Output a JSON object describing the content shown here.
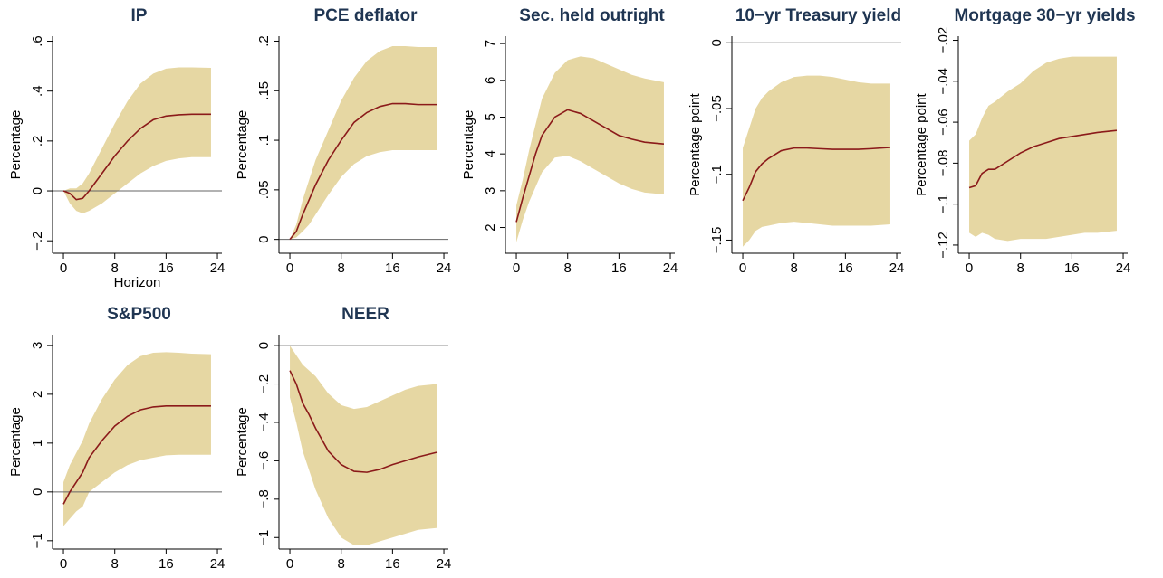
{
  "chart_data": [
    {
      "type": "line",
      "title": "IP",
      "y_label": "Percentage",
      "x_label": "Horizon",
      "color": "#8b1a1a",
      "band_color": "#e6d7a3",
      "x": [
        0,
        1,
        2,
        3,
        4,
        6,
        8,
        10,
        12,
        14,
        16,
        18,
        20,
        23
      ],
      "values": [
        0,
        -0.01,
        -0.035,
        -0.03,
        0,
        0.07,
        0.14,
        0.2,
        0.25,
        0.285,
        0.3,
        0.305,
        0.307,
        0.307
      ],
      "lower": [
        0,
        -0.05,
        -0.08,
        -0.09,
        -0.08,
        -0.05,
        -0.01,
        0.03,
        0.07,
        0.1,
        0.12,
        0.13,
        0.135,
        0.135
      ],
      "upper": [
        0,
        0.01,
        0.01,
        0.03,
        0.07,
        0.17,
        0.27,
        0.36,
        0.43,
        0.47,
        0.49,
        0.495,
        0.495,
        0.493
      ],
      "xlim": [
        -1.7,
        24.7
      ],
      "xticks": [
        0,
        8,
        16,
        24
      ],
      "ylim": [
        -0.25,
        0.62
      ],
      "yticks": [
        {
          "value": -0.2,
          "label": "−.2"
        },
        0,
        {
          "value": 0.2,
          "label": ".2"
        },
        {
          "value": 0.4,
          "label": ".4"
        },
        {
          "value": 0.6,
          "label": ".6"
        }
      ]
    },
    {
      "type": "line",
      "title": "PCE deflator",
      "y_label": "Percentage",
      "color": "#8b1a1a",
      "band_color": "#e6d7a3",
      "x": [
        0,
        1,
        2,
        3,
        4,
        6,
        8,
        10,
        12,
        14,
        16,
        18,
        20,
        23
      ],
      "values": [
        0,
        0.008,
        0.025,
        0.04,
        0.055,
        0.08,
        0.1,
        0.118,
        0.128,
        0.134,
        0.137,
        0.137,
        0.136,
        0.136
      ],
      "lower": [
        0,
        0.002,
        0.008,
        0.015,
        0.025,
        0.045,
        0.063,
        0.076,
        0.084,
        0.088,
        0.09,
        0.09,
        0.09,
        0.09
      ],
      "upper": [
        0,
        0.015,
        0.04,
        0.06,
        0.08,
        0.11,
        0.14,
        0.163,
        0.18,
        0.19,
        0.195,
        0.195,
        0.194,
        0.194
      ],
      "xlim": [
        -1.7,
        24.7
      ],
      "xticks": [
        0,
        8,
        16,
        24
      ],
      "ylim": [
        -0.014,
        0.205
      ],
      "yticks": [
        0,
        {
          "value": 0.05,
          "label": ".05"
        },
        {
          "value": 0.1,
          "label": ".1"
        },
        {
          "value": 0.15,
          "label": ".15"
        },
        {
          "value": 0.2,
          "label": ".2"
        }
      ]
    },
    {
      "type": "line",
      "title": "Sec. held outright",
      "y_label": "Percentage",
      "color": "#8b1a1a",
      "band_color": "#e6d7a3",
      "x": [
        0,
        1,
        2,
        3,
        4,
        6,
        8,
        10,
        12,
        14,
        16,
        18,
        20,
        23
      ],
      "values": [
        2.15,
        2.8,
        3.4,
        4.0,
        4.5,
        5.0,
        5.2,
        5.1,
        4.9,
        4.7,
        4.5,
        4.4,
        4.32,
        4.27
      ],
      "lower": [
        1.6,
        2.2,
        2.7,
        3.1,
        3.5,
        3.9,
        3.95,
        3.8,
        3.6,
        3.4,
        3.2,
        3.05,
        2.95,
        2.9
      ],
      "upper": [
        2.6,
        3.3,
        4.1,
        4.8,
        5.5,
        6.2,
        6.55,
        6.65,
        6.6,
        6.45,
        6.3,
        6.15,
        6.05,
        5.95
      ],
      "xlim": [
        -1.7,
        24.7
      ],
      "xticks": [
        0,
        8,
        16,
        24
      ],
      "ylim": [
        1.3,
        7.2
      ],
      "yticks": [
        2,
        3,
        4,
        5,
        6,
        7
      ]
    },
    {
      "type": "line",
      "title": "10−yr Treasury yield",
      "y_label": "Percentage point",
      "color": "#8b1a1a",
      "band_color": "#e6d7a3",
      "x": [
        0,
        1,
        2,
        3,
        4,
        6,
        8,
        10,
        12,
        14,
        16,
        18,
        20,
        23
      ],
      "values": [
        -0.12,
        -0.11,
        -0.098,
        -0.092,
        -0.088,
        -0.082,
        -0.08,
        -0.08,
        -0.0805,
        -0.081,
        -0.081,
        -0.081,
        -0.0805,
        -0.0795
      ],
      "lower": [
        -0.155,
        -0.15,
        -0.143,
        -0.14,
        -0.139,
        -0.137,
        -0.136,
        -0.137,
        -0.138,
        -0.139,
        -0.139,
        -0.139,
        -0.139,
        -0.138
      ],
      "upper": [
        -0.08,
        -0.065,
        -0.05,
        -0.042,
        -0.037,
        -0.03,
        -0.026,
        -0.025,
        -0.025,
        -0.026,
        -0.028,
        -0.03,
        -0.031,
        -0.031
      ],
      "xlim": [
        -1.7,
        24.7
      ],
      "xticks": [
        0,
        8,
        16,
        24
      ],
      "ylim": [
        -0.16,
        0.005
      ],
      "yticks": [
        {
          "value": -0.15,
          "label": "−.15"
        },
        {
          "value": -0.1,
          "label": "−.1"
        },
        {
          "value": -0.05,
          "label": "−.05"
        },
        0
      ]
    },
    {
      "type": "line",
      "title": "Mortgage 30−yr yields",
      "y_label": "Percentage point",
      "color": "#8b1a1a",
      "band_color": "#e6d7a3",
      "x": [
        0,
        1,
        2,
        3,
        4,
        6,
        8,
        10,
        12,
        14,
        16,
        18,
        20,
        23
      ],
      "values": [
        -0.092,
        -0.091,
        -0.085,
        -0.083,
        -0.083,
        -0.079,
        -0.075,
        -0.072,
        -0.07,
        -0.068,
        -0.067,
        -0.066,
        -0.065,
        -0.064
      ],
      "lower": [
        -0.114,
        -0.116,
        -0.114,
        -0.115,
        -0.117,
        -0.118,
        -0.117,
        -0.117,
        -0.117,
        -0.116,
        -0.115,
        -0.114,
        -0.114,
        -0.113
      ],
      "upper": [
        -0.069,
        -0.066,
        -0.058,
        -0.052,
        -0.05,
        -0.045,
        -0.041,
        -0.035,
        -0.031,
        -0.029,
        -0.028,
        -0.028,
        -0.028,
        -0.028
      ],
      "xlim": [
        -1.7,
        24.7
      ],
      "xticks": [
        0,
        8,
        16,
        24
      ],
      "ylim": [
        -0.124,
        -0.018
      ],
      "yticks": [
        {
          "value": -0.12,
          "label": "−.12"
        },
        {
          "value": -0.1,
          "label": "−.1"
        },
        {
          "value": -0.08,
          "label": "−.08"
        },
        {
          "value": -0.06,
          "label": "−.06"
        },
        {
          "value": -0.04,
          "label": "−.04"
        },
        {
          "value": -0.02,
          "label": "−.02"
        }
      ]
    },
    {
      "type": "line",
      "title": "S&P500",
      "y_label": "Percentage",
      "color": "#8b1a1a",
      "band_color": "#e6d7a3",
      "x": [
        0,
        1,
        2,
        3,
        4,
        6,
        8,
        10,
        12,
        14,
        16,
        18,
        20,
        23
      ],
      "values": [
        -0.25,
        0,
        0.2,
        0.4,
        0.7,
        1.05,
        1.35,
        1.55,
        1.68,
        1.74,
        1.76,
        1.76,
        1.76,
        1.76
      ],
      "lower": [
        -0.7,
        -0.55,
        -0.4,
        -0.3,
        0,
        0.2,
        0.4,
        0.55,
        0.65,
        0.7,
        0.75,
        0.76,
        0.76,
        0.76
      ],
      "upper": [
        0.2,
        0.55,
        0.8,
        1.05,
        1.4,
        1.9,
        2.3,
        2.6,
        2.78,
        2.85,
        2.86,
        2.85,
        2.83,
        2.82
      ],
      "xlim": [
        -1.7,
        24.7
      ],
      "xticks": [
        0,
        8,
        16,
        24
      ],
      "ylim": [
        -1.17,
        3.22
      ],
      "yticks": [
        {
          "value": -1,
          "label": "−1"
        },
        0,
        1,
        2,
        3
      ]
    },
    {
      "type": "line",
      "title": "NEER",
      "y_label": "Percentage",
      "color": "#8b1a1a",
      "band_color": "#e6d7a3",
      "x": [
        0,
        1,
        2,
        3,
        4,
        6,
        8,
        10,
        12,
        14,
        16,
        18,
        20,
        23
      ],
      "values": [
        -0.13,
        -0.2,
        -0.3,
        -0.36,
        -0.43,
        -0.55,
        -0.62,
        -0.655,
        -0.66,
        -0.645,
        -0.62,
        -0.6,
        -0.58,
        -0.555
      ],
      "lower": [
        -0.27,
        -0.4,
        -0.55,
        -0.65,
        -0.75,
        -0.9,
        -1.0,
        -1.04,
        -1.04,
        -1.02,
        -1.0,
        -0.98,
        -0.96,
        -0.95
      ],
      "upper": [
        0,
        -0.05,
        -0.1,
        -0.13,
        -0.16,
        -0.25,
        -0.31,
        -0.33,
        -0.32,
        -0.29,
        -0.26,
        -0.23,
        -0.21,
        -0.2
      ],
      "xlim": [
        -1.7,
        24.7
      ],
      "xticks": [
        0,
        8,
        16,
        24
      ],
      "ylim": [
        -1.06,
        0.057
      ],
      "yticks": [
        {
          "value": -1,
          "label": "−1"
        },
        {
          "value": -0.8,
          "label": "−.8"
        },
        {
          "value": -0.6,
          "label": "−.6"
        },
        {
          "value": -0.4,
          "label": "−.4"
        },
        {
          "value": -0.2,
          "label": "−.2"
        },
        0
      ]
    }
  ]
}
